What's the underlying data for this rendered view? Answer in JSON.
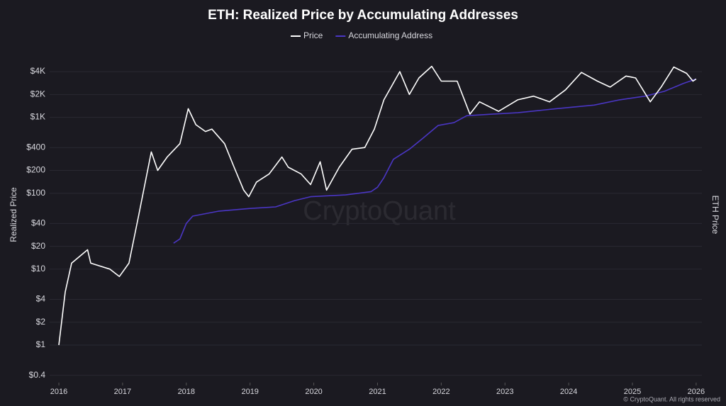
{
  "chart_data": {
    "type": "line",
    "title": "ETH: Realized Price by Accumulating Addresses",
    "y_label": "Realized Price",
    "y2_label": "ETH Price",
    "watermark": "CryptoQuant",
    "footer": "© CryptoQuant. All rights reserved",
    "log_y": true,
    "grid": true,
    "xlim": [
      2015.855,
      2026.09
    ],
    "xticks": [
      2016,
      2017,
      2018,
      2019,
      2020,
      2021,
      2022,
      2023,
      2024,
      2025,
      2026
    ],
    "ylim": [
      0.32,
      5650
    ],
    "yticks": [
      {
        "value": 0.4,
        "label": "$0.4"
      },
      {
        "value": 1,
        "label": "$1"
      },
      {
        "value": 2,
        "label": "$2"
      },
      {
        "value": 4,
        "label": "$4"
      },
      {
        "value": 10,
        "label": "$10"
      },
      {
        "value": 20,
        "label": "$20"
      },
      {
        "value": 40,
        "label": "$40"
      },
      {
        "value": 100,
        "label": "$100"
      },
      {
        "value": 200,
        "label": "$200"
      },
      {
        "value": 400,
        "label": "$400"
      },
      {
        "value": 1000,
        "label": "$1K"
      },
      {
        "value": 2000,
        "label": "$2K"
      },
      {
        "value": 4000,
        "label": "$4K"
      }
    ],
    "series": [
      {
        "name": "Price",
        "color": "#ffffff",
        "x": [
          2016.0,
          2016.1,
          2016.2,
          2016.45,
          2016.5,
          2016.8,
          2016.95,
          2017.1,
          2017.25,
          2017.45,
          2017.55,
          2017.7,
          2017.9,
          2018.03,
          2018.15,
          2018.3,
          2018.4,
          2018.6,
          2018.75,
          2018.9,
          2018.98,
          2019.1,
          2019.3,
          2019.5,
          2019.6,
          2019.8,
          2019.95,
          2020.1,
          2020.2,
          2020.4,
          2020.6,
          2020.8,
          2020.95,
          2021.1,
          2021.35,
          2021.5,
          2021.65,
          2021.85,
          2022.0,
          2022.25,
          2022.45,
          2022.6,
          2022.9,
          2023.2,
          2023.45,
          2023.7,
          2023.95,
          2024.2,
          2024.45,
          2024.65,
          2024.9,
          2025.05,
          2025.28,
          2025.45,
          2025.65,
          2025.85,
          2025.95,
          2026.0
        ],
        "values": [
          1,
          5,
          12,
          18,
          12,
          10,
          8,
          12,
          50,
          350,
          200,
          300,
          450,
          1300,
          800,
          650,
          700,
          450,
          220,
          110,
          90,
          140,
          180,
          300,
          220,
          180,
          130,
          260,
          110,
          220,
          380,
          400,
          700,
          1700,
          4000,
          2000,
          3300,
          4700,
          3000,
          3000,
          1100,
          1600,
          1200,
          1700,
          1900,
          1600,
          2300,
          3900,
          3000,
          2500,
          3500,
          3300,
          1600,
          2500,
          4600,
          3800,
          3000,
          3200
        ]
      },
      {
        "name": "Accumulating Address",
        "color": "#4a36c4",
        "x": [
          2017.8,
          2017.9,
          2018.0,
          2018.1,
          2018.5,
          2019.0,
          2019.4,
          2019.7,
          2019.95,
          2020.5,
          2020.9,
          2021.0,
          2021.1,
          2021.25,
          2021.5,
          2021.7,
          2021.95,
          2022.2,
          2022.4,
          2022.8,
          2023.2,
          2023.8,
          2024.4,
          2024.8,
          2025.2,
          2025.5,
          2025.8,
          2026.0
        ],
        "values": [
          22,
          25,
          40,
          50,
          58,
          63,
          66,
          80,
          90,
          95,
          105,
          120,
          160,
          280,
          380,
          520,
          780,
          850,
          1050,
          1100,
          1150,
          1300,
          1450,
          1700,
          1900,
          2200,
          2800,
          3200
        ]
      }
    ]
  }
}
